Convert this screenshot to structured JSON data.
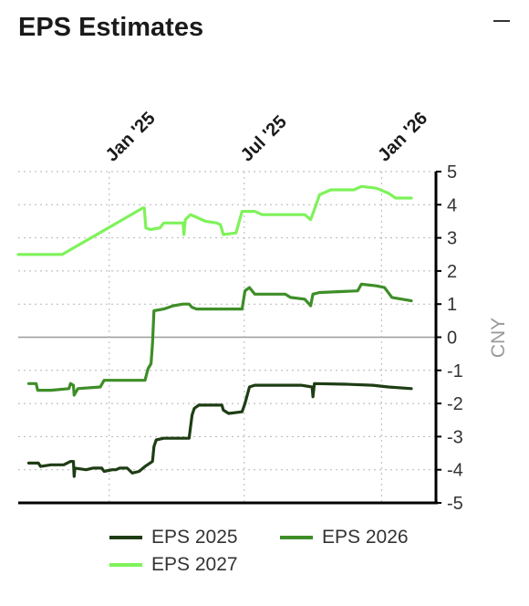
{
  "header": {
    "title": "EPS Estimates",
    "collapse_icon": "minus-icon"
  },
  "chart_data": {
    "type": "line",
    "title": "EPS Estimates",
    "xlabel": "",
    "ylabel": "CNY",
    "xlim": [
      "2024-09-01",
      "2026-03-15"
    ],
    "ylim": [
      -5,
      5
    ],
    "yticks": [
      5,
      4,
      3,
      2,
      1,
      0,
      -1,
      -2,
      -3,
      -4,
      -5
    ],
    "xticks": [
      {
        "label": "Jan '25",
        "date": "2025-01-01"
      },
      {
        "label": "Jul '25",
        "date": "2025-07-01"
      },
      {
        "label": "Jan '26",
        "date": "2026-01-01"
      }
    ],
    "grid": true,
    "legend_position": "bottom",
    "series": [
      {
        "name": "EPS 2025",
        "color": "#1e3d14",
        "points": [
          [
            "2024-09-15",
            -3.8
          ],
          [
            "2024-09-28",
            -3.8
          ],
          [
            "2024-10-01",
            -3.9
          ],
          [
            "2024-10-15",
            -3.85
          ],
          [
            "2024-11-01",
            -3.85
          ],
          [
            "2024-11-10",
            -3.75
          ],
          [
            "2024-11-14",
            -3.75
          ],
          [
            "2024-11-15",
            -4.2
          ],
          [
            "2024-11-16",
            -3.95
          ],
          [
            "2024-12-01",
            -4.0
          ],
          [
            "2024-12-10",
            -3.95
          ],
          [
            "2024-12-22",
            -3.95
          ],
          [
            "2024-12-25",
            -4.05
          ],
          [
            "2025-01-05",
            -4.0
          ],
          [
            "2025-01-10",
            -4.0
          ],
          [
            "2025-01-15",
            -3.95
          ],
          [
            "2025-01-25",
            -3.95
          ],
          [
            "2025-02-01",
            -4.1
          ],
          [
            "2025-02-10",
            -4.05
          ],
          [
            "2025-02-18",
            -3.9
          ],
          [
            "2025-02-28",
            -3.75
          ],
          [
            "2025-03-02",
            -3.3
          ],
          [
            "2025-03-05",
            -3.1
          ],
          [
            "2025-03-15",
            -3.05
          ],
          [
            "2025-04-18",
            -3.05
          ],
          [
            "2025-04-22",
            -2.35
          ],
          [
            "2025-04-25",
            -2.15
          ],
          [
            "2025-05-01",
            -2.05
          ],
          [
            "2025-06-01",
            -2.05
          ],
          [
            "2025-06-03",
            -2.2
          ],
          [
            "2025-06-10",
            -2.3
          ],
          [
            "2025-06-28",
            -2.25
          ],
          [
            "2025-07-02",
            -2.0
          ],
          [
            "2025-07-08",
            -1.5
          ],
          [
            "2025-07-15",
            -1.45
          ],
          [
            "2025-08-15",
            -1.45
          ],
          [
            "2025-09-15",
            -1.45
          ],
          [
            "2025-09-30",
            -1.5
          ],
          [
            "2025-10-01",
            -1.8
          ],
          [
            "2025-10-03",
            -1.4
          ],
          [
            "2025-11-15",
            -1.42
          ],
          [
            "2025-12-20",
            -1.45
          ],
          [
            "2026-01-10",
            -1.5
          ],
          [
            "2026-02-10",
            -1.55
          ]
        ]
      },
      {
        "name": "EPS 2026",
        "color": "#3e8e28",
        "points": [
          [
            "2024-09-15",
            -1.4
          ],
          [
            "2024-09-25",
            -1.4
          ],
          [
            "2024-09-27",
            -1.6
          ],
          [
            "2024-10-15",
            -1.6
          ],
          [
            "2024-11-08",
            -1.55
          ],
          [
            "2024-11-10",
            -1.4
          ],
          [
            "2024-11-14",
            -1.45
          ],
          [
            "2024-11-15",
            -1.75
          ],
          [
            "2024-11-20",
            -1.55
          ],
          [
            "2024-12-20",
            -1.5
          ],
          [
            "2024-12-25",
            -1.3
          ],
          [
            "2025-02-18",
            -1.3
          ],
          [
            "2025-02-22",
            -0.95
          ],
          [
            "2025-02-26",
            -0.8
          ],
          [
            "2025-02-28",
            -0.2
          ],
          [
            "2025-03-02",
            0.8
          ],
          [
            "2025-03-15",
            0.85
          ],
          [
            "2025-03-28",
            0.95
          ],
          [
            "2025-04-10",
            1.0
          ],
          [
            "2025-04-18",
            1.0
          ],
          [
            "2025-04-22",
            0.9
          ],
          [
            "2025-04-28",
            0.85
          ],
          [
            "2025-06-15",
            0.85
          ],
          [
            "2025-06-28",
            0.85
          ],
          [
            "2025-07-02",
            1.4
          ],
          [
            "2025-07-08",
            1.5
          ],
          [
            "2025-07-15",
            1.3
          ],
          [
            "2025-08-25",
            1.3
          ],
          [
            "2025-09-01",
            1.2
          ],
          [
            "2025-09-20",
            1.15
          ],
          [
            "2025-09-28",
            0.95
          ],
          [
            "2025-10-01",
            1.3
          ],
          [
            "2025-10-10",
            1.35
          ],
          [
            "2025-11-30",
            1.4
          ],
          [
            "2025-12-05",
            1.6
          ],
          [
            "2025-12-25",
            1.55
          ],
          [
            "2026-01-05",
            1.5
          ],
          [
            "2026-01-15",
            1.2
          ],
          [
            "2026-02-10",
            1.1
          ]
        ]
      },
      {
        "name": "EPS 2027",
        "color": "#7ef25a",
        "points": [
          [
            "2024-09-01",
            2.5
          ],
          [
            "2024-10-30",
            2.5
          ],
          [
            "2025-02-15",
            3.9
          ],
          [
            "2025-02-17",
            3.9
          ],
          [
            "2025-02-19",
            3.3
          ],
          [
            "2025-02-25",
            3.25
          ],
          [
            "2025-03-10",
            3.3
          ],
          [
            "2025-03-15",
            3.45
          ],
          [
            "2025-04-10",
            3.45
          ],
          [
            "2025-04-11",
            3.1
          ],
          [
            "2025-04-13",
            3.55
          ],
          [
            "2025-04-20",
            3.7
          ],
          [
            "2025-05-10",
            3.5
          ],
          [
            "2025-05-25",
            3.45
          ],
          [
            "2025-05-30",
            3.4
          ],
          [
            "2025-06-03",
            3.1
          ],
          [
            "2025-06-20",
            3.15
          ],
          [
            "2025-06-28",
            3.8
          ],
          [
            "2025-07-15",
            3.8
          ],
          [
            "2025-07-25",
            3.7
          ],
          [
            "2025-09-20",
            3.7
          ],
          [
            "2025-09-28",
            3.55
          ],
          [
            "2025-10-03",
            3.85
          ],
          [
            "2025-10-10",
            4.3
          ],
          [
            "2025-10-25",
            4.45
          ],
          [
            "2025-11-25",
            4.45
          ],
          [
            "2025-12-05",
            4.55
          ],
          [
            "2025-12-25",
            4.5
          ],
          [
            "2026-01-10",
            4.35
          ],
          [
            "2026-01-20",
            4.2
          ],
          [
            "2026-02-10",
            4.2
          ]
        ]
      }
    ]
  }
}
